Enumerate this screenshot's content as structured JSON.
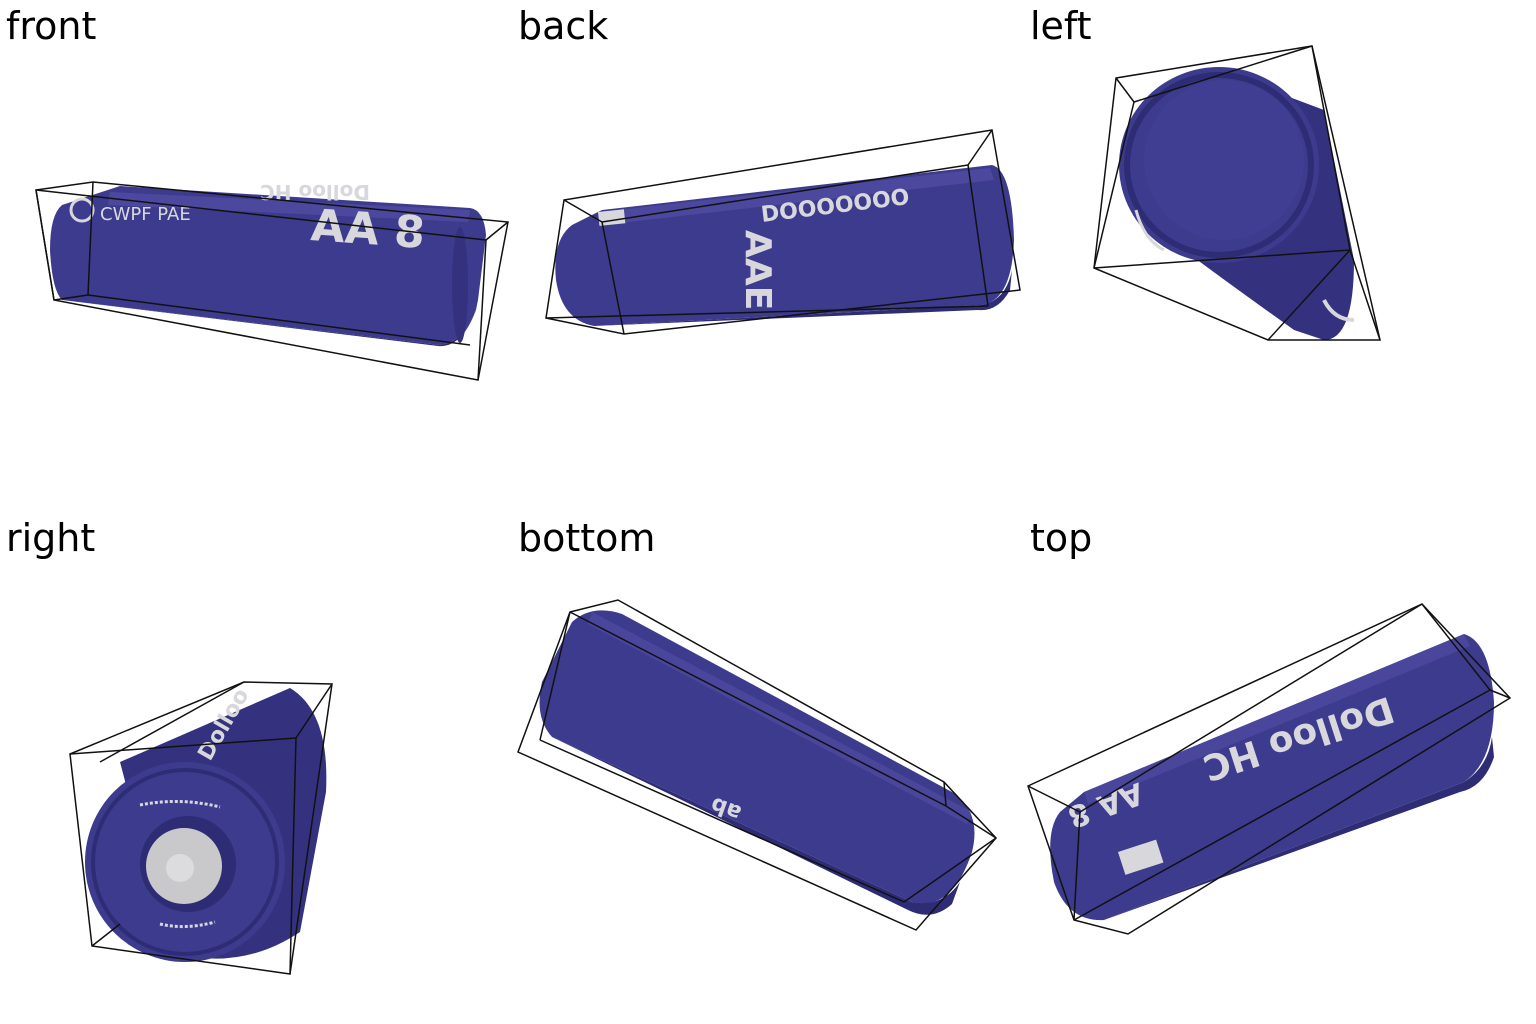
{
  "colors": {
    "battery_body": "#3d3b8e",
    "battery_shade": "#2e2c74",
    "battery_highlight": "#5552a8",
    "label_print": "#d8d8dc",
    "terminal": "#c9c9cc",
    "bbox_line": "#111111"
  },
  "views": [
    {
      "id": "front",
      "label": "front",
      "print": [
        "AA 8",
        "Dolloo HC",
        "CWPF PAE"
      ]
    },
    {
      "id": "back",
      "label": "back",
      "print": [
        "DOOOOOOO",
        "AAE"
      ]
    },
    {
      "id": "left",
      "label": "left",
      "print": []
    },
    {
      "id": "right",
      "label": "right",
      "print": [
        "Dolloo"
      ]
    },
    {
      "id": "bottom",
      "label": "bottom",
      "print": [
        "ab"
      ]
    },
    {
      "id": "top",
      "label": "top",
      "print": [
        "Dolloo HC",
        "AA 8"
      ]
    }
  ]
}
